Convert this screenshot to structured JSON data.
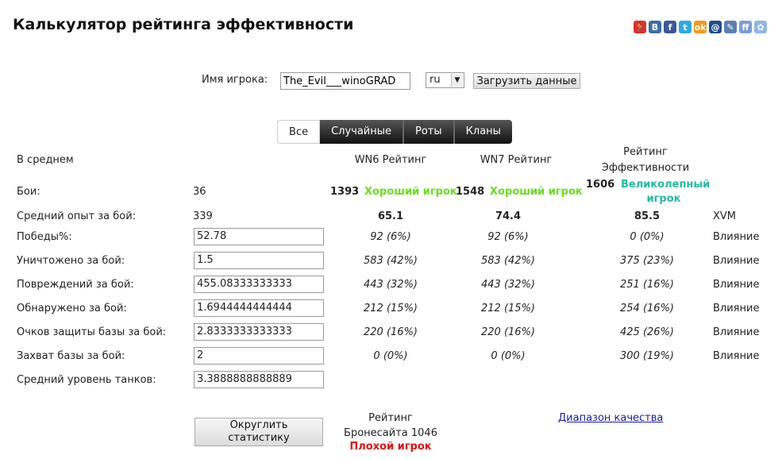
{
  "title": "Калькулятор рейтинга эффективности",
  "share_icons": [
    {
      "name": "runner-icon",
      "color": "#e03030",
      "glyph": "🏃"
    },
    {
      "name": "vk-icon",
      "color": "#3b6ea5",
      "glyph": "B"
    },
    {
      "name": "facebook-icon",
      "color": "#3b5998",
      "glyph": "f"
    },
    {
      "name": "twitter-icon",
      "color": "#2fa8e0",
      "glyph": "t"
    },
    {
      "name": "odnoklassniki-icon",
      "color": "#f49a1c",
      "glyph": "ok"
    },
    {
      "name": "mailru-icon",
      "color": "#1c4f8f",
      "glyph": "@"
    },
    {
      "name": "livejournal-icon",
      "color": "#5a7fb0",
      "glyph": "✎"
    },
    {
      "name": "liveinternet-icon",
      "color": "#7a9cd6",
      "glyph": "ff"
    },
    {
      "name": "moimir-icon",
      "color": "#8fb5e6",
      "glyph": "✿"
    }
  ],
  "player": {
    "label": "Имя игрока:",
    "value": "The_Evil___winoGRAD",
    "server": "ru",
    "load_button": "Загрузить данные"
  },
  "tabs": [
    {
      "label": "Все",
      "active": true
    },
    {
      "label": "Случайные"
    },
    {
      "label": "Роты"
    },
    {
      "label": "Кланы"
    }
  ],
  "header": {
    "avg": "В среднем",
    "wn6": "WN6 Рейтинг",
    "wn7": "WN7 Рейтинг",
    "eff_1": "Рейтинг",
    "eff_2": "Эффективности"
  },
  "battles": {
    "label": "Бои:",
    "value": "36",
    "wn6": "1393",
    "wn6_class": "Хороший игрок",
    "wn7": "1548",
    "wn7_class": "Хороший игрок",
    "eff": "1606",
    "eff_class_1": "Великолепный",
    "eff_class_2": "игрок"
  },
  "xp": {
    "label": "Средний опыт за бой:",
    "value": "339",
    "wn6": "65.1",
    "wn7": "74.4",
    "eff": "85.5",
    "xvm": "XVM"
  },
  "rows": [
    {
      "label": "Победы%:",
      "value": "52.78",
      "wn6": "92 (6%)",
      "wn7": "92 (6%)",
      "eff": "0 (0%)",
      "note": "Влияние"
    },
    {
      "label": "Уничтожено за бой:",
      "value": "1.5",
      "wn6": "583 (42%)",
      "wn7": "583 (42%)",
      "eff": "375 (23%)",
      "note": "Влияние"
    },
    {
      "label": "Повреждений за бой:",
      "value": "455.08333333333",
      "wn6": "443 (32%)",
      "wn7": "443 (32%)",
      "eff": "251 (16%)",
      "note": "Влияние"
    },
    {
      "label": "Обнаружено за бой:",
      "value": "1.6944444444444",
      "wn6": "212 (15%)",
      "wn7": "212 (15%)",
      "eff": "254 (16%)",
      "note": "Влияние"
    },
    {
      "label": "Очков защиты базы за бой:",
      "value": "2.8333333333333",
      "wn6": "220 (16%)",
      "wn7": "220 (16%)",
      "eff": "425 (26%)",
      "note": "Влияние"
    },
    {
      "label": "Захват базы за бой:",
      "value": "2",
      "wn6": "0 (0%)",
      "wn7": "0 (0%)",
      "eff": "300 (19%)",
      "note": "Влияние"
    },
    {
      "label": "Средний уровень танков:",
      "value": "3.3888888888889"
    }
  ],
  "footer": {
    "round_1": "Округлить",
    "round_2": "статистику",
    "armor_1": "Рейтинг",
    "armor_2": "Бронесайта 1046",
    "armor_class": "Плохой игрок",
    "range_link": "Диапазон качества"
  }
}
